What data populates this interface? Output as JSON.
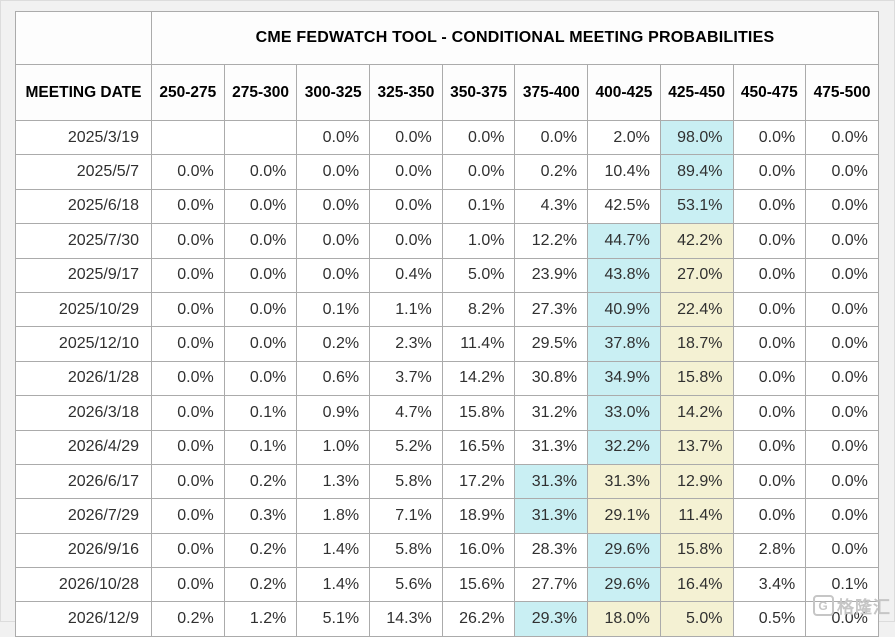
{
  "table": {
    "title": "CME FEDWATCH TOOL - CONDITIONAL MEETING PROBABILITIES",
    "date_header": "MEETING DATE",
    "columns": [
      "250-275",
      "275-300",
      "300-325",
      "325-350",
      "350-375",
      "375-400",
      "400-425",
      "425-450",
      "450-475",
      "475-500"
    ],
    "rows": [
      {
        "date": "2025/3/19",
        "values": [
          "",
          "",
          "0.0%",
          "0.0%",
          "0.0%",
          "0.0%",
          "2.0%",
          "98.0%",
          "0.0%",
          "0.0%"
        ],
        "highlights": [
          "",
          "",
          "",
          "",
          "",
          "",
          "",
          "c",
          "",
          ""
        ]
      },
      {
        "date": "2025/5/7",
        "values": [
          "0.0%",
          "0.0%",
          "0.0%",
          "0.0%",
          "0.0%",
          "0.2%",
          "10.4%",
          "89.4%",
          "0.0%",
          "0.0%"
        ],
        "highlights": [
          "",
          "",
          "",
          "",
          "",
          "",
          "",
          "c",
          "",
          ""
        ]
      },
      {
        "date": "2025/6/18",
        "values": [
          "0.0%",
          "0.0%",
          "0.0%",
          "0.0%",
          "0.1%",
          "4.3%",
          "42.5%",
          "53.1%",
          "0.0%",
          "0.0%"
        ],
        "highlights": [
          "",
          "",
          "",
          "",
          "",
          "",
          "",
          "c",
          "",
          ""
        ]
      },
      {
        "date": "2025/7/30",
        "values": [
          "0.0%",
          "0.0%",
          "0.0%",
          "0.0%",
          "1.0%",
          "12.2%",
          "44.7%",
          "42.2%",
          "0.0%",
          "0.0%"
        ],
        "highlights": [
          "",
          "",
          "",
          "",
          "",
          "",
          "c",
          "y",
          "",
          ""
        ]
      },
      {
        "date": "2025/9/17",
        "values": [
          "0.0%",
          "0.0%",
          "0.0%",
          "0.4%",
          "5.0%",
          "23.9%",
          "43.8%",
          "27.0%",
          "0.0%",
          "0.0%"
        ],
        "highlights": [
          "",
          "",
          "",
          "",
          "",
          "",
          "c",
          "y",
          "",
          ""
        ]
      },
      {
        "date": "2025/10/29",
        "values": [
          "0.0%",
          "0.0%",
          "0.1%",
          "1.1%",
          "8.2%",
          "27.3%",
          "40.9%",
          "22.4%",
          "0.0%",
          "0.0%"
        ],
        "highlights": [
          "",
          "",
          "",
          "",
          "",
          "",
          "c",
          "y",
          "",
          ""
        ]
      },
      {
        "date": "2025/12/10",
        "values": [
          "0.0%",
          "0.0%",
          "0.2%",
          "2.3%",
          "11.4%",
          "29.5%",
          "37.8%",
          "18.7%",
          "0.0%",
          "0.0%"
        ],
        "highlights": [
          "",
          "",
          "",
          "",
          "",
          "",
          "c",
          "y",
          "",
          ""
        ]
      },
      {
        "date": "2026/1/28",
        "values": [
          "0.0%",
          "0.0%",
          "0.6%",
          "3.7%",
          "14.2%",
          "30.8%",
          "34.9%",
          "15.8%",
          "0.0%",
          "0.0%"
        ],
        "highlights": [
          "",
          "",
          "",
          "",
          "",
          "",
          "c",
          "y",
          "",
          ""
        ]
      },
      {
        "date": "2026/3/18",
        "values": [
          "0.0%",
          "0.1%",
          "0.9%",
          "4.7%",
          "15.8%",
          "31.2%",
          "33.0%",
          "14.2%",
          "0.0%",
          "0.0%"
        ],
        "highlights": [
          "",
          "",
          "",
          "",
          "",
          "",
          "c",
          "y",
          "",
          ""
        ]
      },
      {
        "date": "2026/4/29",
        "values": [
          "0.0%",
          "0.1%",
          "1.0%",
          "5.2%",
          "16.5%",
          "31.3%",
          "32.2%",
          "13.7%",
          "0.0%",
          "0.0%"
        ],
        "highlights": [
          "",
          "",
          "",
          "",
          "",
          "",
          "c",
          "y",
          "",
          ""
        ]
      },
      {
        "date": "2026/6/17",
        "values": [
          "0.0%",
          "0.2%",
          "1.3%",
          "5.8%",
          "17.2%",
          "31.3%",
          "31.3%",
          "12.9%",
          "0.0%",
          "0.0%"
        ],
        "highlights": [
          "",
          "",
          "",
          "",
          "",
          "c",
          "y",
          "y",
          "",
          ""
        ]
      },
      {
        "date": "2026/7/29",
        "values": [
          "0.0%",
          "0.3%",
          "1.8%",
          "7.1%",
          "18.9%",
          "31.3%",
          "29.1%",
          "11.4%",
          "0.0%",
          "0.0%"
        ],
        "highlights": [
          "",
          "",
          "",
          "",
          "",
          "c",
          "y",
          "y",
          "",
          ""
        ]
      },
      {
        "date": "2026/9/16",
        "values": [
          "0.0%",
          "0.2%",
          "1.4%",
          "5.8%",
          "16.0%",
          "28.3%",
          "29.6%",
          "15.8%",
          "2.8%",
          "0.0%"
        ],
        "highlights": [
          "",
          "",
          "",
          "",
          "",
          "",
          "c",
          "y",
          "",
          ""
        ]
      },
      {
        "date": "2026/10/28",
        "values": [
          "0.0%",
          "0.2%",
          "1.4%",
          "5.6%",
          "15.6%",
          "27.7%",
          "29.6%",
          "16.4%",
          "3.4%",
          "0.1%"
        ],
        "highlights": [
          "",
          "",
          "",
          "",
          "",
          "",
          "c",
          "y",
          "",
          ""
        ]
      },
      {
        "date": "2026/12/9",
        "values": [
          "0.2%",
          "1.2%",
          "5.1%",
          "14.3%",
          "26.2%",
          "29.3%",
          "18.0%",
          "5.0%",
          "0.5%",
          "0.0%"
        ],
        "highlights": [
          "",
          "",
          "",
          "",
          "",
          "c",
          "y",
          "y",
          "",
          ""
        ]
      }
    ]
  },
  "colors": {
    "highlight_cyan": "#c9eff3",
    "highlight_yellow": "#f4f1d3",
    "border": "#ababab",
    "page_background": "#f1f1f1"
  },
  "watermark": {
    "logo": "G",
    "text": "格隆汇"
  }
}
